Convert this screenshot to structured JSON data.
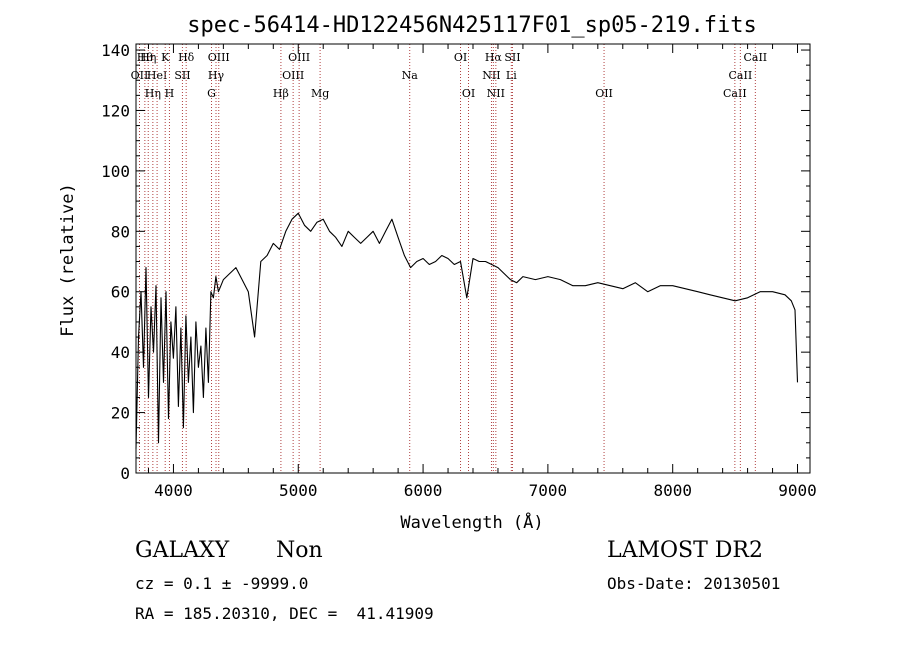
{
  "chart_data": {
    "type": "line",
    "title": "spec-56414-HD122456N425117F01_sp05-219.fits",
    "xlabel": "Wavelength (Å)",
    "ylabel": "Flux (relative)",
    "xlim": [
      3700,
      9100
    ],
    "ylim": [
      0,
      142
    ],
    "xticks": [
      4000,
      5000,
      6000,
      7000,
      8000,
      9000
    ],
    "yticks": [
      0,
      20,
      40,
      60,
      80,
      100,
      120,
      140
    ],
    "grid": false,
    "line_color": "#000000",
    "marker_color": "#b04040",
    "series": [
      {
        "x": [
          3700,
          3720,
          3740,
          3760,
          3780,
          3800,
          3820,
          3840,
          3860,
          3880,
          3900,
          3920,
          3940,
          3960,
          3980,
          4000,
          4020,
          4040,
          4060,
          4080,
          4100,
          4120,
          4140,
          4160,
          4180,
          4200,
          4220,
          4240,
          4260,
          4280,
          4300,
          4320,
          4340,
          4360,
          4380,
          4400,
          4450,
          4500,
          4550,
          4600,
          4650,
          4700,
          4750,
          4800,
          4850,
          4900,
          4950,
          5000,
          5050,
          5100,
          5150,
          5200,
          5250,
          5300,
          5350,
          5400,
          5450,
          5500,
          5550,
          5600,
          5650,
          5700,
          5750,
          5800,
          5850,
          5900,
          5950,
          6000,
          6050,
          6100,
          6150,
          6200,
          6250,
          6300,
          6350,
          6400,
          6450,
          6500,
          6550,
          6600,
          6650,
          6700,
          6750,
          6800,
          6900,
          7000,
          7100,
          7200,
          7300,
          7400,
          7500,
          7600,
          7700,
          7800,
          7900,
          8000,
          8100,
          8200,
          8300,
          8400,
          8500,
          8600,
          8700,
          8800,
          8900,
          8950,
          8980,
          9000
        ],
        "y": [
          8,
          45,
          60,
          35,
          68,
          25,
          55,
          40,
          62,
          10,
          58,
          30,
          60,
          18,
          50,
          38,
          55,
          22,
          48,
          15,
          52,
          30,
          45,
          20,
          50,
          35,
          42,
          25,
          48,
          30,
          60,
          58,
          65,
          60,
          62,
          64,
          66,
          68,
          64,
          60,
          45,
          70,
          72,
          76,
          74,
          80,
          84,
          86,
          82,
          80,
          83,
          84,
          80,
          78,
          75,
          80,
          78,
          76,
          78,
          80,
          76,
          80,
          84,
          78,
          72,
          68,
          70,
          71,
          69,
          70,
          72,
          71,
          69,
          70,
          58,
          71,
          70,
          70,
          69,
          68,
          66,
          64,
          63,
          65,
          64,
          65,
          64,
          62,
          62,
          63,
          62,
          61,
          63,
          60,
          62,
          62,
          61,
          60,
          59,
          58,
          57,
          58,
          60,
          60,
          59,
          57,
          54,
          30
        ]
      }
    ],
    "line_markers": [
      {
        "x": 3728,
        "row": 1,
        "label": "OII"
      },
      {
        "x": 3771,
        "row": 0,
        "label": "Hθ"
      },
      {
        "x": 3798,
        "row": 0,
        "label": "Hη"
      },
      {
        "x": 3835,
        "row": 2,
        "label": "Hη"
      },
      {
        "x": 3869,
        "row": 1,
        "label": "HeI"
      },
      {
        "x": 3934,
        "row": 0,
        "label": "K"
      },
      {
        "x": 3968,
        "row": 2,
        "label": "H"
      },
      {
        "x": 4072,
        "row": 1,
        "label": "SII"
      },
      {
        "x": 4102,
        "row": 0,
        "label": "Hδ"
      },
      {
        "x": 4305,
        "row": 2,
        "label": "G"
      },
      {
        "x": 4341,
        "row": 1,
        "label": "Hγ"
      },
      {
        "x": 4363,
        "row": 0,
        "label": "OIII"
      },
      {
        "x": 4861,
        "row": 2,
        "label": "Hβ"
      },
      {
        "x": 4959,
        "row": 1,
        "label": "OIII"
      },
      {
        "x": 5007,
        "row": 0,
        "label": "OIII"
      },
      {
        "x": 5175,
        "row": 2,
        "label": "Mg"
      },
      {
        "x": 5893,
        "row": 1,
        "label": "Na"
      },
      {
        "x": 6300,
        "row": 0,
        "label": "OI"
      },
      {
        "x": 6364,
        "row": 2,
        "label": "OI"
      },
      {
        "x": 6548,
        "row": 1,
        "label": "NII"
      },
      {
        "x": 6563,
        "row": 0,
        "label": "Hα"
      },
      {
        "x": 6583,
        "row": 2,
        "label": "NII"
      },
      {
        "x": 6707,
        "row": 1,
        "label": "Li"
      },
      {
        "x": 6716,
        "row": 0,
        "label": "SII"
      },
      {
        "x": 7450,
        "row": 2,
        "label": "OII"
      },
      {
        "x": 8498,
        "row": 2,
        "label": "CaII"
      },
      {
        "x": 8542,
        "row": 1,
        "label": "CaII"
      },
      {
        "x": 8662,
        "row": 0,
        "label": "CaII"
      }
    ]
  },
  "info": {
    "class": "GALAXY",
    "subclass": "Non",
    "survey": "LAMOST DR2",
    "cz": "cz = 0.1 ± -9999.0",
    "obs_date": "Obs-Date: 20130501",
    "coords": "RA = 185.20310, DEC =  41.41909"
  }
}
